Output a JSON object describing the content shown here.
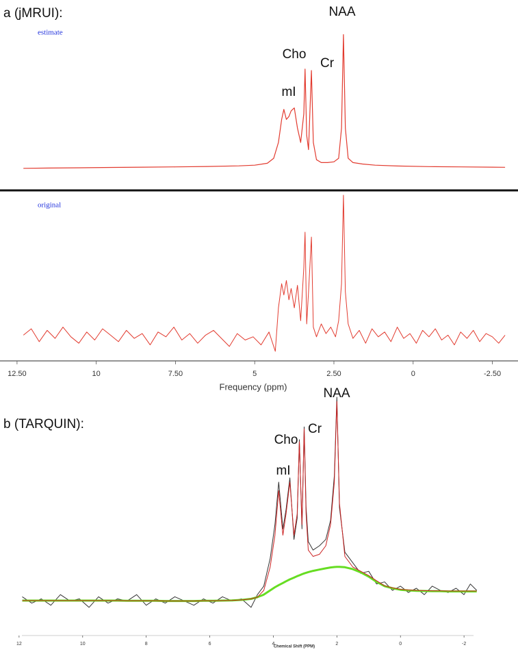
{
  "chart_data": [
    {
      "type": "line",
      "title": "a (jMRUI):",
      "subtitle": "estimate",
      "annotations": [
        "NAA",
        "Cho",
        "Cr",
        "mI"
      ],
      "xlim": [
        12.8,
        -3.05
      ],
      "ylim": [
        0,
        100
      ],
      "x": [
        12.3,
        11.5,
        10.5,
        9.5,
        8.5,
        7.5,
        6.5,
        5.5,
        5.0,
        4.6,
        4.4,
        4.25,
        4.15,
        4.08,
        4.0,
        3.92,
        3.85,
        3.75,
        3.65,
        3.55,
        3.45,
        3.41,
        3.36,
        3.3,
        3.21,
        3.15,
        3.05,
        2.9,
        2.7,
        2.5,
        2.35,
        2.26,
        2.2,
        2.14,
        2.05,
        1.9,
        1.6,
        1.2,
        0.5,
        -0.5,
        -1.5,
        -2.5,
        -2.9
      ],
      "series": [
        {
          "color": "#e23a2e",
          "values": [
            2,
            2.2,
            2.4,
            2.6,
            2.8,
            3,
            3.3,
            3.7,
            4.2,
            5.5,
            9,
            20,
            36,
            43,
            36,
            38,
            42,
            44,
            30,
            20,
            40,
            71,
            25,
            15,
            70,
            20,
            8,
            6,
            6,
            6.5,
            9,
            30,
            95,
            30,
            9,
            6,
            5,
            4.2,
            3.6,
            3.2,
            3,
            2.8,
            2.7
          ]
        }
      ]
    },
    {
      "type": "line",
      "subtitle": "original",
      "x_label": "Frequency (ppm)",
      "xlim": [
        12.8,
        -3.05
      ],
      "ylim": [
        0,
        100
      ],
      "xticks": [
        {
          "value": 12.5,
          "label": "12.50"
        },
        10,
        {
          "value": 7.5,
          "label": "7.50"
        },
        5,
        {
          "value": 2.5,
          "label": "2.50"
        },
        0,
        {
          "value": -2.5,
          "label": "-2.50"
        }
      ],
      "x": [
        12.3,
        12.05,
        11.8,
        11.55,
        11.3,
        11.05,
        10.8,
        10.55,
        10.3,
        10.05,
        9.8,
        9.55,
        9.3,
        9.05,
        8.8,
        8.55,
        8.3,
        8.05,
        7.8,
        7.55,
        7.3,
        7.05,
        6.8,
        6.55,
        6.3,
        6.05,
        5.8,
        5.55,
        5.3,
        5.05,
        4.8,
        4.55,
        4.35,
        4.25,
        4.15,
        4.08,
        4.0,
        3.92,
        3.85,
        3.75,
        3.65,
        3.55,
        3.45,
        3.41,
        3.36,
        3.3,
        3.21,
        3.15,
        3.05,
        2.9,
        2.75,
        2.6,
        2.45,
        2.35,
        2.26,
        2.2,
        2.14,
        2.05,
        1.9,
        1.7,
        1.5,
        1.3,
        1.1,
        0.9,
        0.7,
        0.5,
        0.3,
        0.1,
        -0.1,
        -0.3,
        -0.5,
        -0.7,
        -0.9,
        -1.1,
        -1.3,
        -1.5,
        -1.7,
        -1.9,
        -2.1,
        -2.3,
        -2.5,
        -2.7,
        -2.9
      ],
      "series": [
        {
          "color": "#e23a2e",
          "values": [
            13,
            17,
            9,
            16,
            11,
            18,
            12,
            8,
            15,
            10,
            17,
            13,
            9,
            16,
            11,
            14,
            7,
            15,
            12,
            18,
            10,
            14,
            8,
            13,
            16,
            11,
            6,
            14,
            10,
            12,
            7,
            15,
            3,
            30,
            45,
            38,
            47,
            35,
            42,
            30,
            44,
            22,
            55,
            77,
            20,
            40,
            74,
            18,
            12,
            20,
            14,
            18,
            12,
            22,
            45,
            100,
            40,
            20,
            11,
            16,
            8,
            17,
            12,
            15,
            9,
            18,
            11,
            14,
            8,
            16,
            12,
            17,
            10,
            13,
            7,
            15,
            11,
            16,
            9,
            14,
            12,
            8,
            13
          ]
        }
      ]
    },
    {
      "type": "line",
      "title": "b (TARQUIN):",
      "annotations": [
        "NAA",
        "Cr",
        "Cho",
        "mI"
      ],
      "x_label": "Chemical Shift (PPM)",
      "xlim": [
        12.6,
        -2.6
      ],
      "ylim": [
        0,
        100
      ],
      "xticks": [
        12,
        10,
        8,
        6,
        4,
        2,
        0,
        -2
      ],
      "x": [
        11.9,
        11.6,
        11.3,
        11.0,
        10.7,
        10.4,
        10.1,
        9.8,
        9.5,
        9.2,
        8.9,
        8.6,
        8.3,
        8.0,
        7.7,
        7.4,
        7.1,
        6.8,
        6.5,
        6.2,
        5.9,
        5.6,
        5.3,
        5.0,
        4.7,
        4.5,
        4.3,
        4.1,
        3.95,
        3.83,
        3.7,
        3.6,
        3.48,
        3.35,
        3.25,
        3.18,
        3.1,
        3.03,
        2.97,
        2.9,
        2.75,
        2.55,
        2.35,
        2.2,
        2.08,
        2.0,
        1.92,
        1.75,
        1.5,
        1.25,
        1.0,
        0.75,
        0.5,
        0.25,
        0.0,
        -0.25,
        -0.5,
        -0.75,
        -1.0,
        -1.25,
        -1.5,
        -1.75,
        -2.0,
        -2.2,
        -2.4
      ],
      "series": [
        {
          "color": "#333333",
          "values": [
            6,
            3,
            5,
            2,
            7,
            4,
            5,
            1,
            6,
            3,
            5,
            4,
            7,
            2,
            5,
            3,
            6,
            4,
            2,
            5,
            3,
            6,
            4,
            5,
            1,
            7,
            11,
            24,
            40,
            60,
            38,
            47,
            62,
            33,
            43,
            80,
            38,
            86,
            48,
            32,
            28,
            30,
            33,
            42,
            63,
            100,
            48,
            27,
            22,
            17,
            18,
            12,
            13,
            9,
            11,
            8,
            10,
            7,
            11,
            9,
            8,
            10,
            7,
            12,
            9
          ]
        },
        {
          "color": "#66dd22",
          "values": [
            4.2,
            4.2,
            4.2,
            4.2,
            4.2,
            4.2,
            4.2,
            4.2,
            4.2,
            4.2,
            4.2,
            4.1,
            4.1,
            4.1,
            4.1,
            4.0,
            4.0,
            4.0,
            4.0,
            4.1,
            4.1,
            4.2,
            4.3,
            4.5,
            5,
            5.8,
            7,
            9,
            10.5,
            11.5,
            12.5,
            13.3,
            14.2,
            15,
            15.7,
            16.1,
            16.6,
            17,
            17.3,
            17.6,
            18.2,
            18.8,
            19.4,
            19.8,
            20,
            20.1,
            20.1,
            19.9,
            19,
            17.5,
            15.5,
            13,
            11,
            10,
            9.3,
            9,
            8.8,
            8.7,
            8.6,
            8.6,
            8.5,
            8.5,
            8.5,
            8.5,
            8.5
          ]
        },
        {
          "color": "#cc2222",
          "values": [
            4.2,
            4.2,
            4.2,
            4.2,
            4.2,
            4.2,
            4.2,
            4.2,
            4.2,
            4.2,
            4.2,
            4.1,
            4.1,
            4.1,
            4.1,
            4.0,
            4.0,
            4.0,
            4.0,
            4.1,
            4.1,
            4.2,
            4.3,
            4.5,
            5,
            5.8,
            9,
            20,
            35,
            56,
            35,
            45,
            60,
            35,
            45,
            79,
            40,
            85,
            45,
            28,
            25,
            26,
            30,
            40,
            60,
            98,
            50,
            25,
            20,
            18,
            16,
            13.5,
            11.2,
            10.2,
            9.5,
            9.2,
            9,
            8.9,
            8.8,
            8.8,
            8.7,
            8.7,
            8.7,
            8.7,
            8.7
          ]
        }
      ]
    }
  ]
}
